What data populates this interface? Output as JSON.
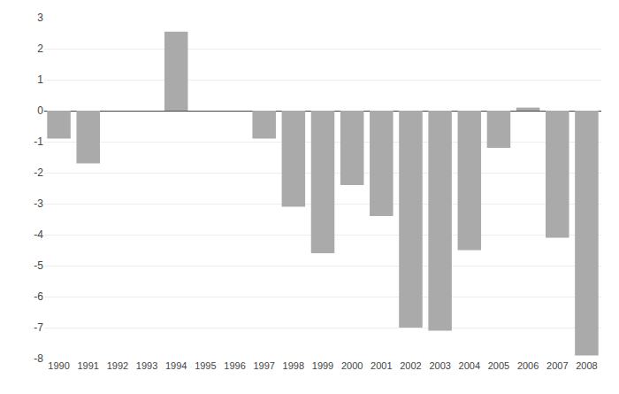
{
  "chart_data": {
    "type": "bar",
    "categories": [
      "1990",
      "1991",
      "1992",
      "1993",
      "1994",
      "1995",
      "1996",
      "1997",
      "1998",
      "1999",
      "2000",
      "2001",
      "2002",
      "2003",
      "2004",
      "2005",
      "2006",
      "2007",
      "2008"
    ],
    "values": [
      -0.9,
      -1.7,
      0.0,
      0.0,
      2.55,
      0.0,
      0.0,
      -0.9,
      -3.1,
      -4.6,
      -2.4,
      -3.4,
      -7.0,
      -7.1,
      -4.5,
      -1.2,
      0.1,
      -4.1,
      -7.9
    ],
    "color": "#aaaaaa",
    "ylim": [
      -8,
      3
    ],
    "yticks": [
      -8,
      -7,
      -6,
      -5,
      -4,
      -3,
      -2,
      -1,
      0,
      1,
      2,
      3
    ],
    "grid": true
  }
}
